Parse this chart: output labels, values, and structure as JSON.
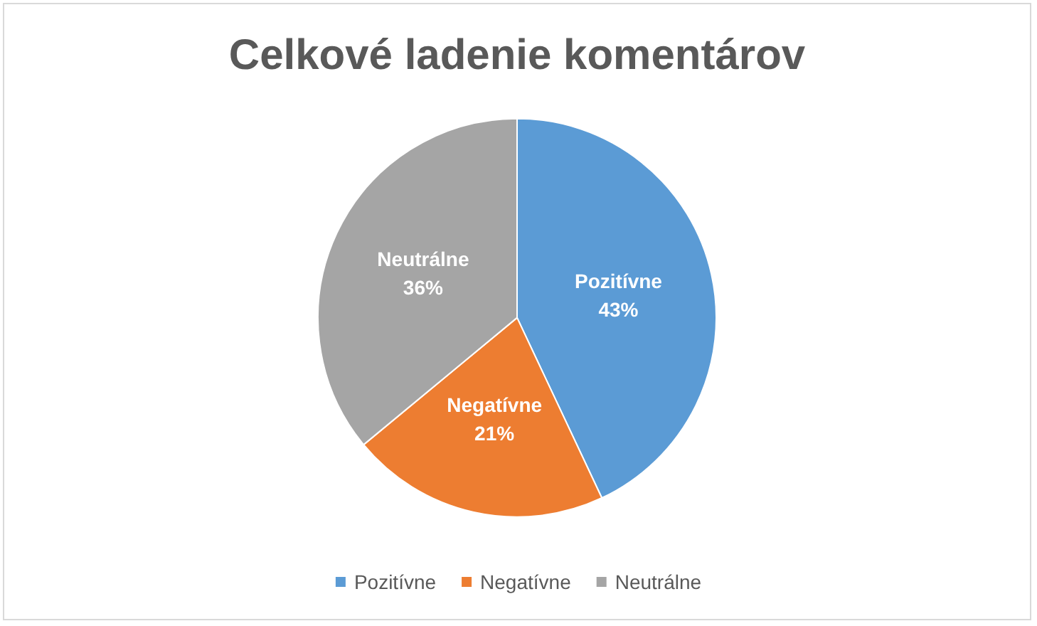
{
  "chart_data": {
    "type": "pie",
    "title": "Celkové ladenie komentárov",
    "categories": [
      "Pozitívne",
      "Negatívne",
      "Neutrálne"
    ],
    "values": [
      43,
      21,
      36
    ],
    "value_labels": [
      "43%",
      "21%",
      "36%"
    ],
    "colors": [
      "#5b9bd5",
      "#ed7d31",
      "#a5a5a5"
    ],
    "legend": "bottom"
  }
}
